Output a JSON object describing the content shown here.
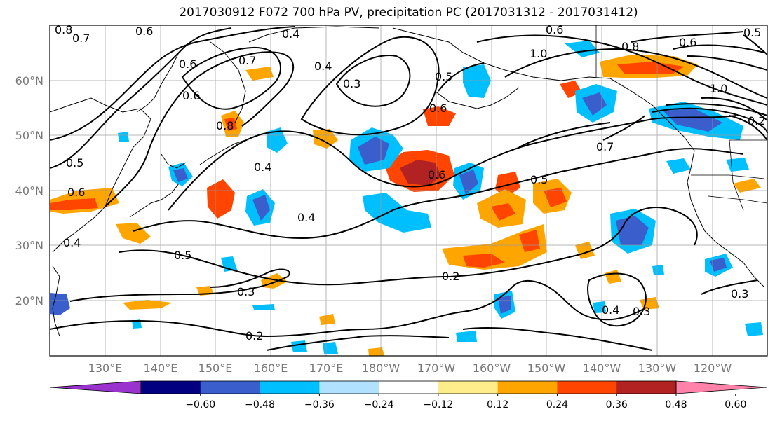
{
  "title": "2017030912 F072 700 hPa PV, precipitation PC (2017031312 - 2017031412)",
  "lat_labels": [
    "60°N",
    "50°N",
    "40°N",
    "30°N",
    "20°N"
  ],
  "lon_labels": [
    "130°E",
    "140°E",
    "150°E",
    "160°E",
    "170°E",
    "180°W",
    "170°W",
    "160°W",
    "150°W",
    "140°W",
    "130°W",
    "120°W"
  ],
  "colorbar": {
    "ticks": [
      "−0.60",
      "−0.48",
      "−0.36",
      "−0.24",
      "−0.12",
      "0.12",
      "0.24",
      "0.36",
      "0.48",
      "0.60"
    ],
    "colors": [
      "#9a32cd",
      "#000080",
      "#3a5fcd",
      "#00bfff",
      "#b0e2ff",
      "#ffffff",
      "#ffec8b",
      "#ffa500",
      "#ff4500",
      "#b22222",
      "#ff82ab"
    ]
  },
  "contour_labels": [
    "0.8",
    "0.7",
    "0.6",
    "0.4",
    "0.6",
    "0.7",
    "0.6",
    "0.8",
    "0.4",
    "0.3",
    "0.5",
    "0.6",
    "0.6",
    "1.0",
    "0.8",
    "0.6",
    "0.5",
    "1.0",
    "0.5",
    "0.6",
    "0.4",
    "0.4",
    "0.5",
    "0.7",
    "0.5",
    "0.3",
    "0.2",
    "0.2",
    "0.4",
    "0.3",
    "0.3",
    "0.4",
    "0.6",
    "0.2"
  ],
  "colors": {
    "contour": "#000000",
    "grid": "#999999",
    "coast": "#000000"
  }
}
